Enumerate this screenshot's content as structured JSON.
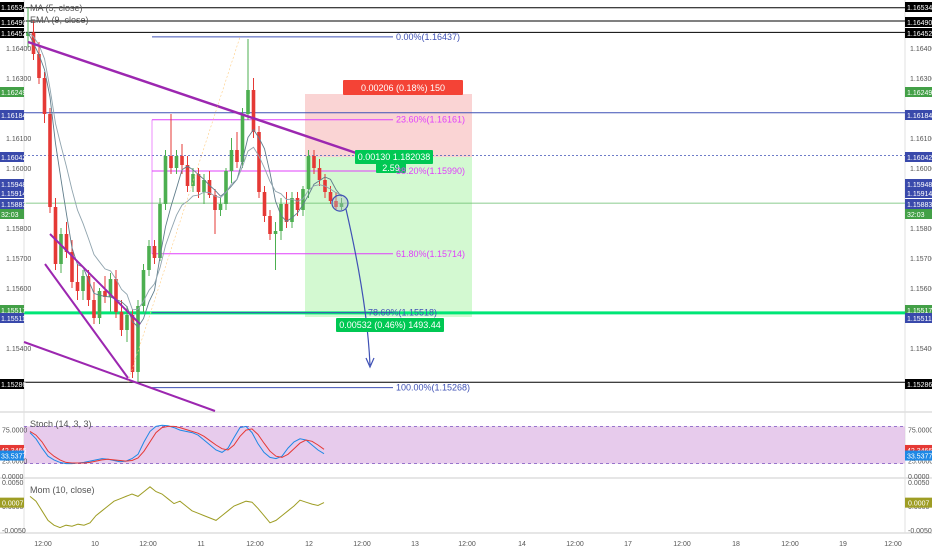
{
  "indicators": {
    "ma_label": "MA (5, close)",
    "ema_label": "EMA (9, close)",
    "stoch_label": "Stoch (14, 3, 3)",
    "mom_label": "Mom (10, close)"
  },
  "colors": {
    "up_candle": "#4caf50",
    "down_candle": "#e53935",
    "trendline": "#9c27b0",
    "fib_blue": "#3f51b5",
    "fib_magenta": "#e040fb",
    "green_line": "#00e676",
    "stoch_fill": "#e1bee7",
    "mom_line": "#9e9d24",
    "profit_zone": "#c8f7c5",
    "loss_zone": "#f8c6c6"
  },
  "price_axis": {
    "ticks": [
      "1.16400",
      "1.16300",
      "1.16100",
      "1.16000",
      "1.15800",
      "1.15700",
      "1.15600",
      "1.15400"
    ],
    "labels_right": [
      {
        "text": "1.16534",
        "style": "black"
      },
      {
        "text": "1.16490",
        "style": "black"
      },
      {
        "text": "1.16452",
        "style": "black"
      },
      {
        "text": "1.16249",
        "style": "green"
      },
      {
        "text": "1.16184",
        "style": "blue"
      },
      {
        "text": "1.16042",
        "style": "blue"
      },
      {
        "text": "1.15948",
        "style": "blue"
      },
      {
        "text": "1.15914",
        "style": "blue"
      },
      {
        "text": "1.15883",
        "style": "blue"
      },
      {
        "text": "32:03",
        "style": "green"
      },
      {
        "text": "1.15517",
        "style": "green"
      },
      {
        "text": "1.15511",
        "style": "blue"
      },
      {
        "text": "1.15286",
        "style": "black"
      }
    ],
    "labels_left": [
      {
        "text": "1.16534",
        "style": "black"
      },
      {
        "text": "1.16490",
        "style": "black"
      },
      {
        "text": "1.16452",
        "style": "black"
      },
      {
        "text": "1.16249",
        "style": "green"
      },
      {
        "text": "1.16184",
        "style": "blue"
      },
      {
        "text": "1.16042",
        "style": "blue"
      },
      {
        "text": "1.15948",
        "style": "blue"
      },
      {
        "text": "1.15914",
        "style": "blue"
      },
      {
        "text": "1.15883",
        "style": "blue"
      },
      {
        "text": "32:03",
        "style": "green"
      },
      {
        "text": "1.15517",
        "style": "green"
      },
      {
        "text": "1.15511",
        "style": "blue"
      },
      {
        "text": "1.15286",
        "style": "black"
      }
    ]
  },
  "stoch_axis": {
    "ticks": [
      "75.0000",
      "25.0000",
      "0.0000"
    ],
    "badges": [
      "42.3466",
      "33.5377"
    ]
  },
  "mom_axis": {
    "ticks": [
      "0.0050",
      "0.0000",
      "-0.0050"
    ],
    "badges": [
      "0.0007"
    ]
  },
  "time_axis": [
    "12:00",
    "10",
    "12:00",
    "11",
    "12:00",
    "12",
    "12:00",
    "13",
    "12:00",
    "14",
    "12:00",
    "17",
    "12:00",
    "18",
    "12:00",
    "19",
    "12:00"
  ],
  "fib_levels": [
    {
      "label": "0.00%(1.16437)",
      "price": 1.16437
    },
    {
      "label": "23.60%(1.16161)",
      "price": 1.16161
    },
    {
      "label": "38.20%(1.15990)",
      "price": 1.1599
    },
    {
      "label": "61.80%(1.15714)",
      "price": 1.15714
    },
    {
      "label": "78.60%(1.15518)",
      "price": 1.15518
    },
    {
      "label": "100.00%(1.15268)",
      "price": 1.15268
    }
  ],
  "position": {
    "stop_label": "0.00206 (0.18%) 150",
    "entry_label": "0.00130 1.182038",
    "ratio_label": "2.59",
    "target_label": "0.00532 (0.46%) 1493.44"
  },
  "chart_data": {
    "type": "candlestick",
    "title": "",
    "ylim": [
      1.152,
      1.1656
    ],
    "x_labels": [
      "12:00",
      "10",
      "12:00",
      "11",
      "12:00",
      "12",
      "12:00",
      "13",
      "12:00",
      "14",
      "12:00",
      "17",
      "12:00",
      "18",
      "12:00",
      "19",
      "12:00"
    ],
    "candles": [
      {
        "o": 1.1644,
        "h": 1.16534,
        "l": 1.164,
        "c": 1.16452
      },
      {
        "o": 1.16452,
        "h": 1.1649,
        "l": 1.1636,
        "c": 1.1638
      },
      {
        "o": 1.1638,
        "h": 1.1642,
        "l": 1.1628,
        "c": 1.163
      },
      {
        "o": 1.163,
        "h": 1.1632,
        "l": 1.1615,
        "c": 1.1618
      },
      {
        "o": 1.1618,
        "h": 1.162,
        "l": 1.1585,
        "c": 1.1587
      },
      {
        "o": 1.1587,
        "h": 1.159,
        "l": 1.1566,
        "c": 1.1568
      },
      {
        "o": 1.1568,
        "h": 1.158,
        "l": 1.1565,
        "c": 1.1578
      },
      {
        "o": 1.1578,
        "h": 1.1582,
        "l": 1.157,
        "c": 1.1572
      },
      {
        "o": 1.1572,
        "h": 1.1576,
        "l": 1.156,
        "c": 1.1562
      },
      {
        "o": 1.1562,
        "h": 1.1568,
        "l": 1.1556,
        "c": 1.1559
      },
      {
        "o": 1.1559,
        "h": 1.1566,
        "l": 1.1556,
        "c": 1.1564
      },
      {
        "o": 1.1564,
        "h": 1.1566,
        "l": 1.1554,
        "c": 1.1556
      },
      {
        "o": 1.1556,
        "h": 1.1562,
        "l": 1.1548,
        "c": 1.155
      },
      {
        "o": 1.155,
        "h": 1.156,
        "l": 1.1548,
        "c": 1.1559
      },
      {
        "o": 1.1559,
        "h": 1.1564,
        "l": 1.1555,
        "c": 1.1557
      },
      {
        "o": 1.1557,
        "h": 1.1565,
        "l": 1.1552,
        "c": 1.1563
      },
      {
        "o": 1.1563,
        "h": 1.1566,
        "l": 1.155,
        "c": 1.1552
      },
      {
        "o": 1.1552,
        "h": 1.1556,
        "l": 1.1544,
        "c": 1.1546
      },
      {
        "o": 1.1546,
        "h": 1.1554,
        "l": 1.1542,
        "c": 1.1551
      },
      {
        "o": 1.1551,
        "h": 1.1553,
        "l": 1.153,
        "c": 1.1532
      },
      {
        "o": 1.1532,
        "h": 1.1556,
        "l": 1.15286,
        "c": 1.1554
      },
      {
        "o": 1.1554,
        "h": 1.1568,
        "l": 1.1552,
        "c": 1.1566
      },
      {
        "o": 1.1566,
        "h": 1.1576,
        "l": 1.1564,
        "c": 1.1574
      },
      {
        "o": 1.1574,
        "h": 1.1576,
        "l": 1.1568,
        "c": 1.157
      },
      {
        "o": 1.157,
        "h": 1.159,
        "l": 1.1569,
        "c": 1.1588
      },
      {
        "o": 1.1588,
        "h": 1.1606,
        "l": 1.1586,
        "c": 1.1604
      },
      {
        "o": 1.1604,
        "h": 1.1618,
        "l": 1.1598,
        "c": 1.16
      },
      {
        "o": 1.16,
        "h": 1.1606,
        "l": 1.1598,
        "c": 1.1604
      },
      {
        "o": 1.1604,
        "h": 1.1608,
        "l": 1.1598,
        "c": 1.1601
      },
      {
        "o": 1.1601,
        "h": 1.1604,
        "l": 1.1592,
        "c": 1.1594
      },
      {
        "o": 1.1594,
        "h": 1.16,
        "l": 1.1592,
        "c": 1.1598
      },
      {
        "o": 1.1598,
        "h": 1.16,
        "l": 1.159,
        "c": 1.1592
      },
      {
        "o": 1.1592,
        "h": 1.1598,
        "l": 1.1588,
        "c": 1.1596
      },
      {
        "o": 1.1596,
        "h": 1.1599,
        "l": 1.159,
        "c": 1.1591
      },
      {
        "o": 1.1591,
        "h": 1.1593,
        "l": 1.1578,
        "c": 1.1586
      },
      {
        "o": 1.1586,
        "h": 1.159,
        "l": 1.1584,
        "c": 1.1588
      },
      {
        "o": 1.1588,
        "h": 1.16,
        "l": 1.1586,
        "c": 1.1599
      },
      {
        "o": 1.1599,
        "h": 1.161,
        "l": 1.1595,
        "c": 1.1606
      },
      {
        "o": 1.1606,
        "h": 1.1612,
        "l": 1.16,
        "c": 1.1602
      },
      {
        "o": 1.1602,
        "h": 1.162,
        "l": 1.16,
        "c": 1.1618
      },
      {
        "o": 1.1618,
        "h": 1.1643,
        "l": 1.1616,
        "c": 1.1626
      },
      {
        "o": 1.1626,
        "h": 1.163,
        "l": 1.161,
        "c": 1.1612
      },
      {
        "o": 1.1612,
        "h": 1.1614,
        "l": 1.159,
        "c": 1.1592
      },
      {
        "o": 1.1592,
        "h": 1.1594,
        "l": 1.1582,
        "c": 1.1584
      },
      {
        "o": 1.1584,
        "h": 1.1586,
        "l": 1.1576,
        "c": 1.1578
      },
      {
        "o": 1.1578,
        "h": 1.1582,
        "l": 1.1566,
        "c": 1.1579
      },
      {
        "o": 1.1579,
        "h": 1.159,
        "l": 1.1576,
        "c": 1.1588
      },
      {
        "o": 1.1588,
        "h": 1.1592,
        "l": 1.158,
        "c": 1.1582
      },
      {
        "o": 1.1582,
        "h": 1.1592,
        "l": 1.158,
        "c": 1.159
      },
      {
        "o": 1.159,
        "h": 1.1592,
        "l": 1.1584,
        "c": 1.1586
      },
      {
        "o": 1.1586,
        "h": 1.1594,
        "l": 1.1584,
        "c": 1.1593
      },
      {
        "o": 1.1593,
        "h": 1.1606,
        "l": 1.159,
        "c": 1.1604
      },
      {
        "o": 1.1604,
        "h": 1.1606,
        "l": 1.1598,
        "c": 1.16
      },
      {
        "o": 1.16,
        "h": 1.1603,
        "l": 1.1594,
        "c": 1.1596
      },
      {
        "o": 1.1596,
        "h": 1.1598,
        "l": 1.159,
        "c": 1.1592
      },
      {
        "o": 1.1592,
        "h": 1.1594,
        "l": 1.1588,
        "c": 1.1589
      },
      {
        "o": 1.1589,
        "h": 1.1592,
        "l": 1.1586,
        "c": 1.1587
      },
      {
        "o": 1.1587,
        "h": 1.159,
        "l": 1.1586,
        "c": 1.15883
      }
    ],
    "stoch_k": [
      70,
      60,
      45,
      32,
      26,
      22,
      20,
      20,
      21,
      22,
      24,
      26,
      28,
      27,
      25,
      23,
      24,
      28,
      35,
      55,
      72,
      80,
      82,
      81,
      78,
      74,
      72,
      70,
      66,
      58,
      50,
      42,
      38,
      45,
      62,
      78,
      80,
      70,
      52,
      38,
      30,
      28,
      32,
      45,
      55,
      60,
      58,
      50,
      42,
      36
    ],
    "stoch_d": [
      72,
      66,
      55,
      40,
      32,
      26,
      22,
      21,
      21,
      21,
      22,
      24,
      26,
      27,
      26,
      25,
      24,
      25,
      29,
      40,
      55,
      70,
      78,
      80,
      80,
      78,
      75,
      72,
      69,
      64,
      57,
      50,
      44,
      42,
      50,
      64,
      74,
      76,
      67,
      53,
      40,
      32,
      30,
      35,
      44,
      53,
      58,
      56,
      50,
      43
    ],
    "momentum": [
      0.002,
      0.001,
      -0.001,
      -0.003,
      -0.004,
      -0.0045,
      -0.004,
      -0.0042,
      -0.0038,
      -0.004,
      -0.0035,
      -0.002,
      -0.001,
      0.0,
      0.001,
      0.0015,
      0.002,
      0.0025,
      0.002,
      0.003,
      0.004,
      0.003,
      0.0025,
      0.0015,
      0.0005,
      0.001,
      0.0,
      -0.001,
      -0.0015,
      -0.002,
      -0.0025,
      -0.003,
      -0.002,
      -0.001,
      0.0,
      0.0005,
      0.001,
      0.0008,
      -0.0005,
      -0.002,
      -0.0035,
      -0.003,
      -0.002,
      -0.001,
      0.0,
      0.0012,
      0.0008,
      0.0004,
      0.0001,
      0.0007
    ]
  }
}
